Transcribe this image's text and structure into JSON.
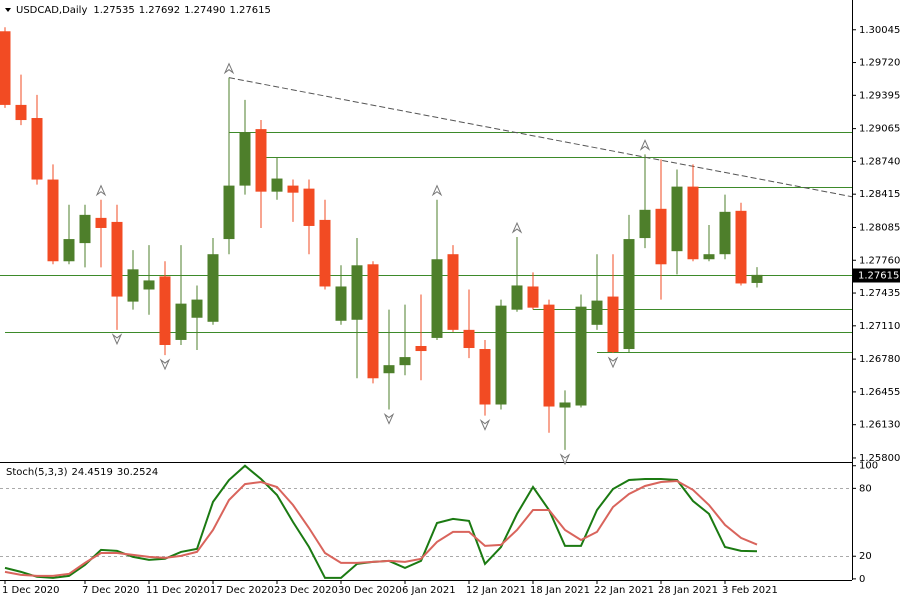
{
  "chart_data": [
    {
      "type": "candlestick",
      "title": "USDCAD,Daily",
      "last_bar_labels": [
        "1.27535",
        "1.27692",
        "1.27490",
        "1.27615"
      ],
      "categories": [
        "1 Dec 2020",
        null,
        null,
        null,
        null,
        "7 Dec 2020",
        null,
        null,
        null,
        "11 Dec 2020",
        null,
        null,
        null,
        "17 Dec 2020",
        null,
        null,
        null,
        "23 Dec 2020",
        null,
        null,
        null,
        "30 Dec 2020",
        null,
        null,
        null,
        "6 Jan 2021",
        null,
        null,
        null,
        "12 Jan 2021",
        null,
        null,
        null,
        "18 Jan 2021",
        null,
        null,
        null,
        "22 Jan 2021",
        null,
        null,
        null,
        "28 Jan 2021",
        null,
        null,
        null,
        "3 Feb 2021",
        null,
        null
      ],
      "open": [
        1.3003,
        1.293,
        1.2917,
        1.2856,
        1.2775,
        1.2793,
        1.2818,
        1.2814,
        1.2735,
        1.2747,
        1.276,
        1.2697,
        1.2719,
        1.2715,
        1.2797,
        1.285,
        1.2906,
        1.2844,
        1.285,
        1.2847,
        1.2816,
        1.2716,
        1.2717,
        1.2772,
        1.2664,
        1.2672,
        1.2691,
        1.2699,
        1.2782,
        1.2707,
        1.2688,
        1.2633,
        1.2727,
        1.275,
        1.2732,
        1.263,
        1.2632,
        1.2712,
        1.274,
        1.2688,
        1.2798,
        1.2827,
        1.2785,
        1.2849,
        1.2777,
        1.2782,
        1.2825,
        1.27535
      ],
      "high": [
        1.3007,
        1.296,
        1.294,
        1.2871,
        1.2831,
        1.2831,
        1.2836,
        1.2831,
        1.2786,
        1.2791,
        1.2775,
        1.2791,
        1.2751,
        1.2798,
        1.2957,
        1.2935,
        1.2915,
        1.2878,
        1.2856,
        1.2856,
        1.2836,
        1.2771,
        1.2798,
        1.2775,
        1.2727,
        1.2732,
        1.2742,
        1.2836,
        1.2791,
        1.2747,
        1.2697,
        1.2737,
        1.2799,
        1.2764,
        1.2737,
        1.2647,
        1.2742,
        1.2782,
        1.2782,
        1.2821,
        1.2881,
        1.2876,
        1.2866,
        1.2871,
        1.2811,
        1.2841,
        1.2833,
        1.27692
      ],
      "low": [
        1.2927,
        1.291,
        1.2851,
        1.2772,
        1.2772,
        1.2769,
        1.2769,
        1.2707,
        1.2727,
        1.2722,
        1.2682,
        1.2692,
        1.2687,
        1.2712,
        1.2782,
        1.2841,
        1.2808,
        1.2836,
        1.2814,
        1.2782,
        1.2747,
        1.2712,
        1.2659,
        1.2654,
        1.2628,
        1.2662,
        1.2657,
        1.2697,
        1.2705,
        1.2679,
        1.2622,
        1.2628,
        1.2725,
        1.2727,
        1.2605,
        1.2588,
        1.263,
        1.2707,
        1.2684,
        1.2685,
        1.2788,
        1.2737,
        1.2762,
        1.2775,
        1.2775,
        1.2777,
        1.2751,
        1.2749
      ],
      "close": [
        1.293,
        1.2915,
        1.2856,
        1.2775,
        1.2797,
        1.2821,
        1.2808,
        1.274,
        1.2767,
        1.2756,
        1.2692,
        1.2733,
        1.2737,
        1.2782,
        1.285,
        1.2903,
        1.2844,
        1.2857,
        1.2843,
        1.281,
        1.275,
        1.275,
        1.2771,
        1.2659,
        1.2672,
        1.268,
        1.2686,
        1.2777,
        1.2707,
        1.2689,
        1.2633,
        1.2731,
        1.2751,
        1.2729,
        1.2631,
        1.2635,
        1.273,
        1.2736,
        1.2685,
        1.2797,
        1.2826,
        1.2772,
        1.2849,
        1.2777,
        1.2782,
        1.2824,
        1.2753,
        1.27615
      ],
      "up_color": "#4e7f2b",
      "down_color": "#f24b23",
      "ylim": [
        1.2576,
        1.3034
      ],
      "yticks": [
        1.30045,
        {
          "value": 1.2972,
          "label": "1.29720"
        },
        1.29395,
        1.29065,
        {
          "value": 1.2874,
          "label": "1.28740"
        },
        1.28415,
        1.28085,
        {
          "value": 1.2776,
          "label": "1.27760"
        },
        1.27435,
        {
          "value": 1.2711,
          "label": "1.27110"
        },
        {
          "value": 1.2678,
          "label": "1.26780"
        },
        1.26455,
        {
          "value": 1.2613,
          "label": "1.26130"
        },
        {
          "value": 1.258,
          "label": "1.25800"
        }
      ],
      "levels": [
        {
          "value": 1.2903,
          "from": 14
        },
        {
          "value": 1.2878,
          "from": 16
        },
        {
          "value": 1.2849,
          "from": 43
        },
        {
          "value": 1.2728,
          "from": 33
        },
        {
          "value": 1.2705,
          "from": 0
        },
        {
          "value": 1.2685,
          "from": 37
        }
      ],
      "level_color": "#3d8a2a",
      "trendline": [
        [
          14,
          1.2957
        ],
        [
          46,
          1.286
        ]
      ],
      "fractals_up": [
        6,
        14,
        27,
        32,
        40
      ],
      "fractals_down": [
        7,
        10,
        24,
        30,
        35,
        38
      ]
    },
    {
      "type": "line",
      "title": "Stoch(5,3,3)",
      "series": [
        {
          "color": "#1b7a12",
          "values": [
            9.7,
            6.2,
            1.8,
            0.9,
            2.6,
            12.4,
            25.6,
            24.7,
            19.4,
            16.8,
            17.7,
            23.8,
            26.5,
            68.0,
            87.4,
            100,
            88.3,
            74.1,
            50.3,
            28.2,
            0.9,
            0.9,
            13.2,
            15.0,
            15.9,
            9.7,
            15.9,
            49.4,
            53.0,
            51.2,
            13.2,
            28.2,
            57.4,
            81.2,
            60.9,
            29.1,
            29.1,
            60.9,
            79.4,
            87.4,
            88.3,
            88.3,
            87.4,
            68.8,
            57.4,
            28.2,
            24.7,
            24.4519
          ]
        },
        {
          "color": "#d9645c",
          "values": [
            6.2,
            3.5,
            2.6,
            2.6,
            4.4,
            14.1,
            22.9,
            22.9,
            21.2,
            19.4,
            18.5,
            20.3,
            23.8,
            43.2,
            69.7,
            83.8,
            85.6,
            81.2,
            65.3,
            45.0,
            22.9,
            14.1,
            14.1,
            15.0,
            15.9,
            15.0,
            17.7,
            32.7,
            41.5,
            41.5,
            29.1,
            30.0,
            43.2,
            60.9,
            60.9,
            43.2,
            34.4,
            41.5,
            63.5,
            75.0,
            82.1,
            85.6,
            86.5,
            78.6,
            65.3,
            47.7,
            36.2,
            30.2524
          ]
        }
      ],
      "levels": [
        20,
        80
      ],
      "ylim": [
        -1,
        103.3
      ],
      "yticks": [
        0,
        20,
        80,
        100
      ]
    }
  ]
}
